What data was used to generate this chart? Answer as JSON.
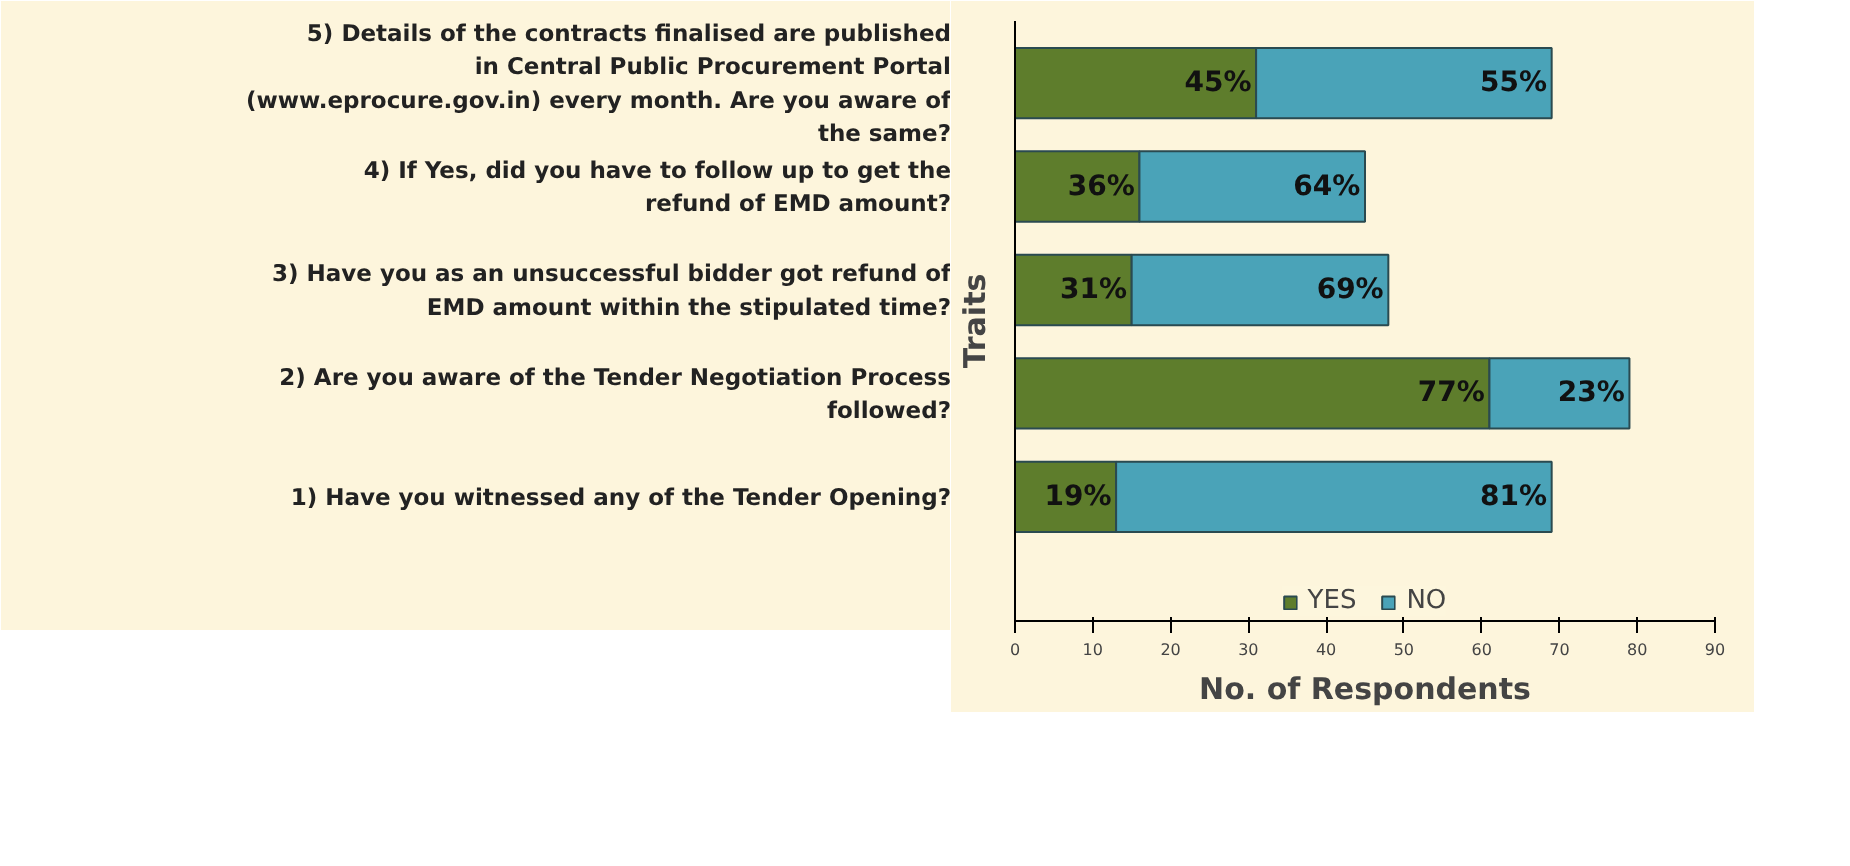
{
  "chart_data": {
    "type": "bar",
    "orientation": "horizontal",
    "stacked": true,
    "xlabel": "No. of Respondents",
    "ylabel": "Traits",
    "categories": [
      "5) Details of the contracts finalised are published in Central Public Procurement Portal (www.eprocure.gov.in) every month. Are you aware of the same?",
      "4) If Yes, did you have to follow up to get the refund of EMD amount?",
      "3) Have you as an unsuccessful bidder got refund of EMD amount within the stipulated time?",
      "2) Are you aware of the Tender Negotiation Process followed?",
      "1) Have you witnessed any of the Tender Opening?"
    ],
    "series": [
      {
        "name": "YES",
        "color": "#5e7d2c",
        "values": [
          31,
          16,
          15,
          61,
          13
        ]
      },
      {
        "name": "NO",
        "color": "#4aa3b8",
        "values": [
          38,
          29,
          33,
          18,
          56
        ]
      }
    ],
    "annotations": [
      {
        "text": "45%",
        "x": 31,
        "y": "5) Details of the contracts finalised are published in Central Public Procurement Portal (www.eprocure.gov.in) every month. Are you aware of the same?"
      },
      {
        "text": "55%",
        "x": 69,
        "y": "5) Details of the contracts finalised are published in Central Public Procurement Portal (www.eprocure.gov.in) every month. Are you aware of the same?"
      },
      {
        "text": "36%",
        "x": 16,
        "y": "4) If Yes, did you have to follow up to get the refund of EMD amount?"
      },
      {
        "text": "64%",
        "x": 45,
        "y": "4) If Yes, did you have to follow up to get the refund of EMD amount?"
      },
      {
        "text": "31%",
        "x": 15,
        "y": "3) Have you as an unsuccessful bidder got refund of EMD amount within the stipulated time?"
      },
      {
        "text": "69%",
        "x": 48,
        "y": "3) Have you as an unsuccessful bidder got refund of EMD amount within the stipulated time?"
      },
      {
        "text": "77%",
        "x": 61,
        "y": "2) Are you aware of the Tender Negotiation Process followed?"
      },
      {
        "text": "23%",
        "x": 79,
        "y": "2) Are you aware of the Tender Negotiation Process followed?"
      },
      {
        "text": "19%",
        "x": 13,
        "y": "1) Have you witnessed any of the Tender Opening?"
      },
      {
        "text": "81%",
        "x": 69,
        "y": "1) Have you witnessed any of the Tender Opening?"
      }
    ],
    "xlim": [
      0,
      90
    ],
    "xticks": [
      0,
      10,
      20,
      30,
      40,
      50,
      60,
      70,
      80,
      90
    ],
    "grid": false,
    "legend": "bottom"
  }
}
